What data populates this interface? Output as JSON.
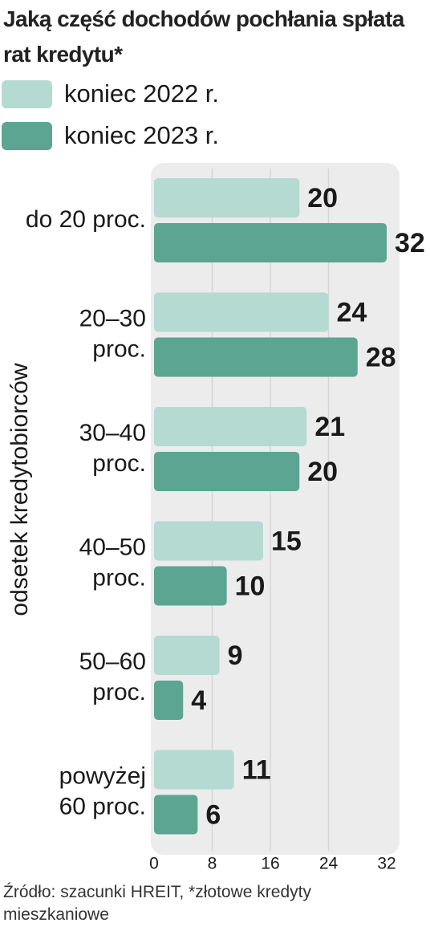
{
  "chart_data": {
    "type": "bar",
    "orientation": "horizontal",
    "title": "Jaką część dochodów pochłania spłata rat kredytu*",
    "y_axis_label": "odsetek kredytobiorców",
    "source": "Źródło: szacunki HREIT, *złotowe kredyty mieszkaniowe",
    "categories": [
      "do 20 proc.",
      "20–30\nproc.",
      "30–40\nproc.",
      "40–50\nproc.",
      "50–60\nproc.",
      "powyżej\n60 proc."
    ],
    "series": [
      {
        "name": "koniec 2022 r.",
        "color": "#b5dad1",
        "values": [
          20,
          24,
          21,
          15,
          9,
          11
        ]
      },
      {
        "name": "koniec 2023 r.",
        "color": "#5ca592",
        "values": [
          32,
          28,
          20,
          10,
          4,
          6
        ]
      }
    ],
    "xlim": [
      0,
      32
    ],
    "xticks": [
      0,
      8,
      16,
      24,
      32
    ],
    "grid": true
  }
}
